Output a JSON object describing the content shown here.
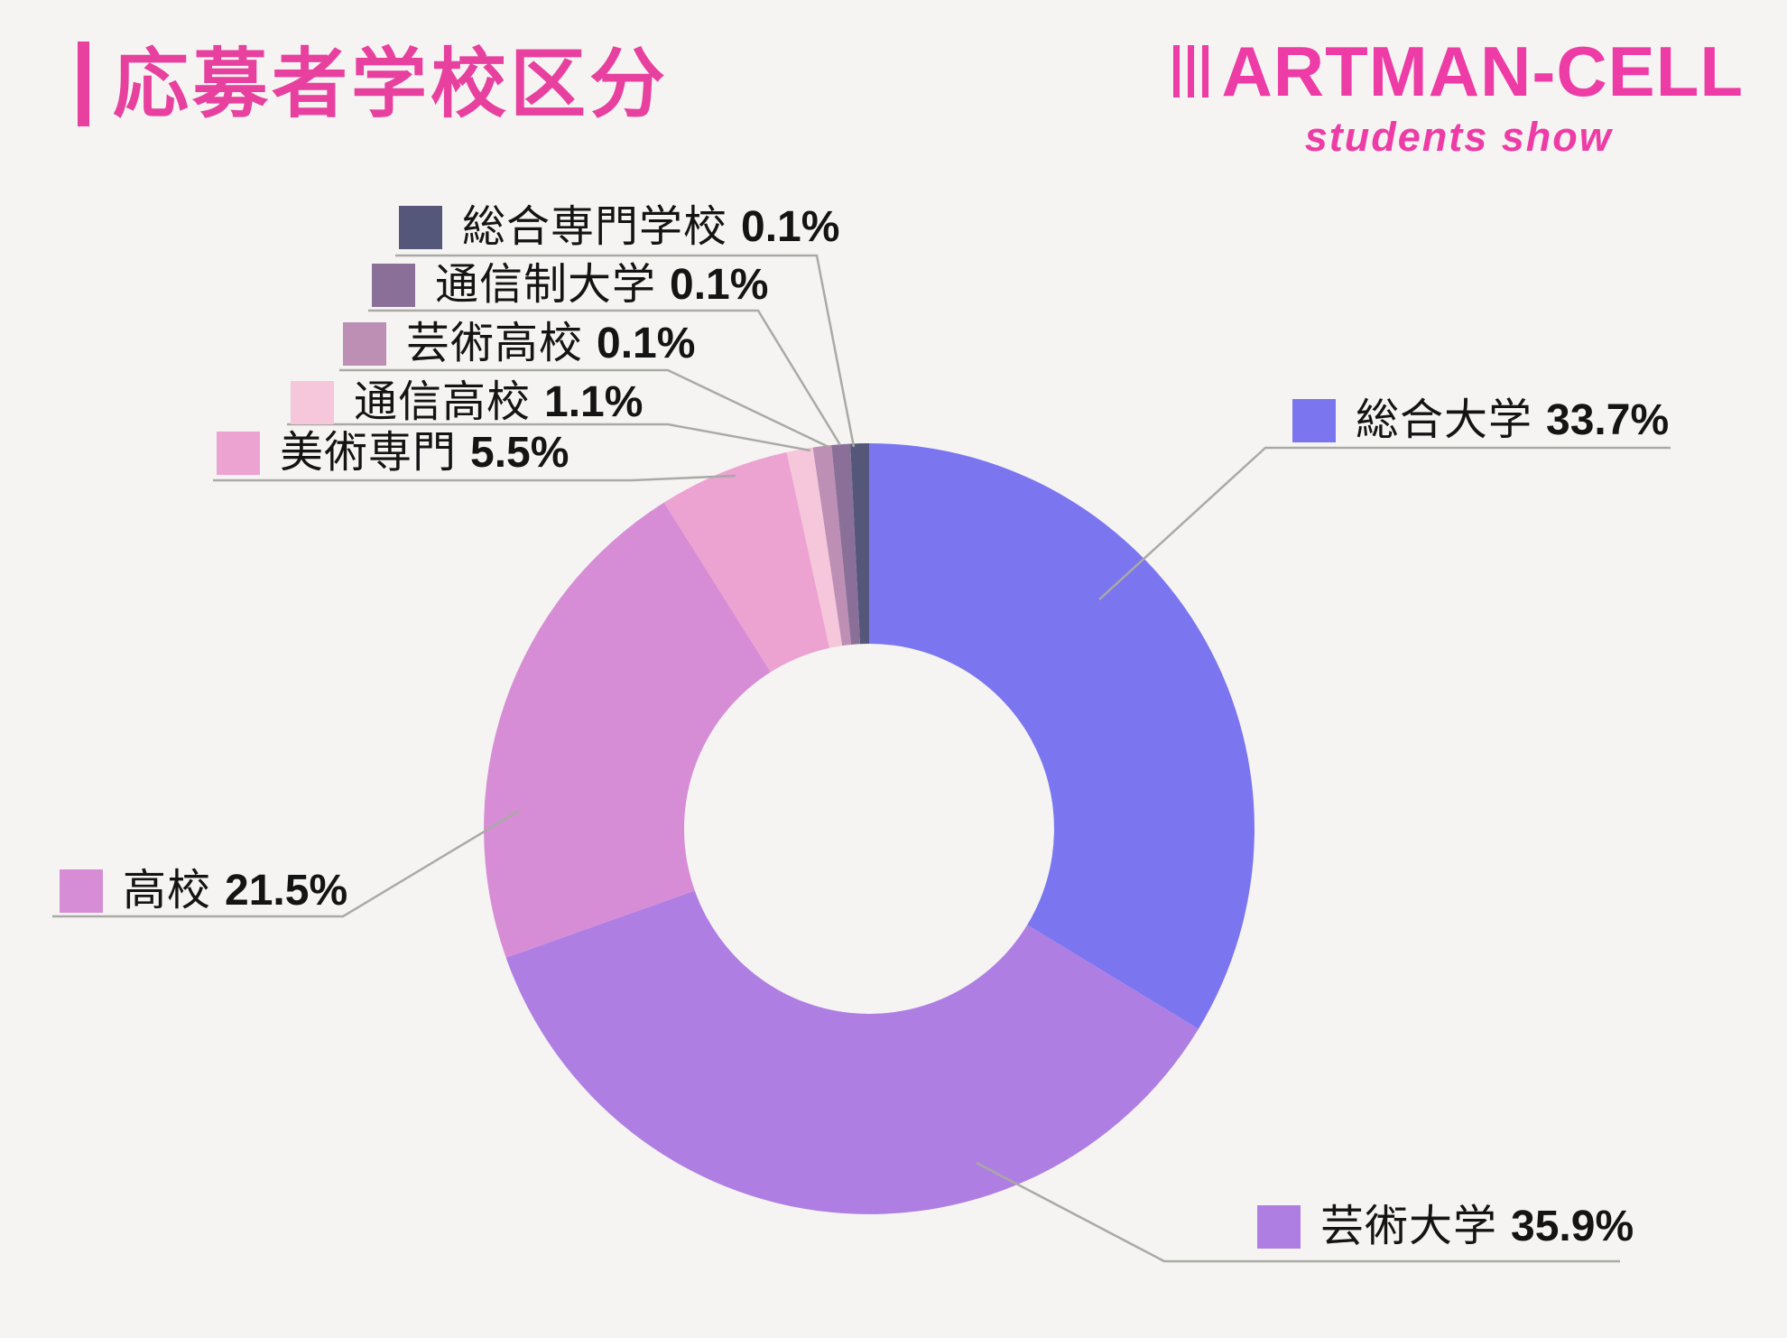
{
  "page": {
    "background_color": "#f5f4f2"
  },
  "header": {
    "title": "応募者学校区分",
    "title_color": "#e8409f",
    "logo": {
      "brand": "ARTMAN-CELL",
      "tagline": "students show",
      "color": "#ee3ca6"
    }
  },
  "chart_data": {
    "type": "pie",
    "variant": "donut",
    "title": "応募者学校区分",
    "start_angle_deg": 0,
    "direction": "clockwise",
    "inner_radius_ratio": 0.48,
    "legend_position": "callout-labels",
    "slices": [
      {
        "label": "総合大学",
        "value": 33.7,
        "pct_display": "33.7%",
        "color": "#7b76f0"
      },
      {
        "label": "芸術大学",
        "value": 35.9,
        "pct_display": "35.9%",
        "color": "#af7ee3"
      },
      {
        "label": "高校",
        "value": 21.5,
        "pct_display": "21.5%",
        "color": "#d78dd6"
      },
      {
        "label": "美術専門",
        "value": 5.5,
        "pct_display": "5.5%",
        "color": "#eca3d2"
      },
      {
        "label": "通信高校",
        "value": 1.1,
        "pct_display": "1.1%",
        "color": "#f6c6da"
      },
      {
        "label": "芸術高校",
        "value": 0.1,
        "pct_display": "0.1%",
        "color": "#bd8fb5"
      },
      {
        "label": "通信制大学",
        "value": 0.1,
        "pct_display": "0.1%",
        "color": "#8a7099"
      },
      {
        "label": "総合専門学校",
        "value": 0.1,
        "pct_display": "0.1%",
        "color": "#54567a"
      }
    ]
  }
}
